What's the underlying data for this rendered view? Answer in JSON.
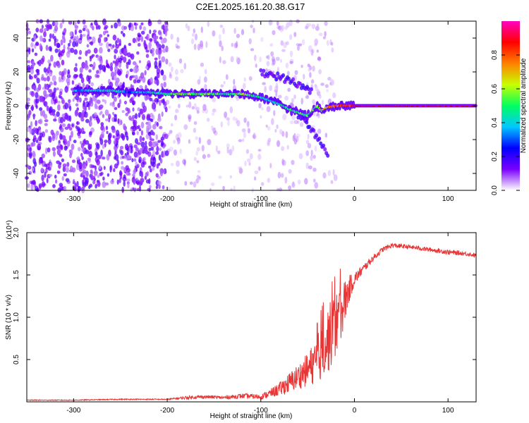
{
  "figure": {
    "title": "C2E1.2025.161.20.38.G17"
  },
  "chart_data": [
    {
      "type": "heatmap",
      "title": "C2E1.2025.161.20.38.G17",
      "xlabel": "Height of straight line (km)",
      "ylabel": "Frequency (Hz)",
      "xlim": [
        -350,
        130
      ],
      "ylim": [
        -50,
        50
      ],
      "xticks": [
        -300,
        -200,
        -100,
        0,
        100
      ],
      "yticks": [
        -40,
        -20,
        0,
        20,
        40
      ],
      "colorbar": {
        "label": "Normalized spectral amplitude",
        "range": [
          0,
          1
        ],
        "ticks": [
          0.0,
          0.2,
          0.4,
          0.6,
          0.8
        ],
        "tick_labels": [
          "0.0",
          "0.2",
          "0.4",
          "0.6",
          "0.8"
        ],
        "colormap": [
          "#ffffff",
          "#7a00ff",
          "#0000ff",
          "#00c8ff",
          "#00ff60",
          "#c8ff00",
          "#ff8000",
          "#ff0000",
          "#ff00c0"
        ]
      },
      "trace": {
        "x": [
          -300,
          -280,
          -260,
          -240,
          -220,
          -200,
          -180,
          -160,
          -140,
          -120,
          -100,
          -90,
          -80,
          -70,
          -60,
          -50,
          -40,
          -35,
          -30,
          -20,
          -10,
          0,
          50,
          100,
          130
        ],
        "freq": [
          9,
          9,
          9,
          8,
          8,
          7,
          7,
          7,
          7,
          7,
          5,
          3,
          1,
          -2,
          -4,
          -6,
          0,
          -3,
          -1,
          0,
          0,
          0,
          0,
          0,
          0
        ],
        "amplitude": [
          0.35,
          0.4,
          0.45,
          0.3,
          0.4,
          0.5,
          0.55,
          0.55,
          0.5,
          0.6,
          0.4,
          0.4,
          0.45,
          0.5,
          0.5,
          0.5,
          0.55,
          0.6,
          0.7,
          0.8,
          0.85,
          0.9,
          0.9,
          0.9,
          0.9
        ]
      },
      "branches": [
        {
          "x": [
            -100,
            -80,
            -60,
            -45
          ],
          "freq": [
            20,
            17,
            13,
            8
          ]
        },
        {
          "x": [
            -60,
            -45,
            -35,
            -28
          ],
          "freq": [
            -5,
            -15,
            -22,
            -28
          ]
        }
      ]
    },
    {
      "type": "line",
      "xlabel": "Height of straight line (km)",
      "ylabel": "SNR (10 * v/v)",
      "multiplier_label": "(x10⁴)",
      "xlim": [
        -350,
        130
      ],
      "ylim": [
        0,
        2.0
      ],
      "xticks": [
        -300,
        -200,
        -100,
        0,
        100
      ],
      "yticks": [
        0.5,
        1.0,
        1.5,
        2.0
      ],
      "ytick_labels": [
        "0.5",
        "1.0",
        "1.5",
        "2.0"
      ],
      "color": "#e83535",
      "series": [
        {
          "x": [
            -350,
            -300,
            -250,
            -200,
            -180,
            -160,
            -140,
            -120,
            -100,
            -90,
            -80,
            -70,
            -60,
            -50,
            -40,
            -30,
            -20,
            -15,
            -10,
            -5,
            0,
            10,
            20,
            30,
            40,
            60,
            80,
            100,
            120,
            130
          ],
          "values": [
            0.02,
            0.02,
            0.03,
            0.03,
            0.05,
            0.06,
            0.05,
            0.07,
            0.06,
            0.1,
            0.15,
            0.22,
            0.3,
            0.38,
            0.5,
            0.7,
            0.9,
            1.05,
            1.2,
            1.35,
            1.45,
            1.58,
            1.7,
            1.8,
            1.85,
            1.83,
            1.8,
            1.77,
            1.75,
            1.73
          ],
          "noise": [
            0.005,
            0.005,
            0.006,
            0.006,
            0.02,
            0.02,
            0.02,
            0.03,
            0.03,
            0.05,
            0.08,
            0.12,
            0.15,
            0.2,
            0.28,
            0.4,
            0.4,
            0.35,
            0.25,
            0.15,
            0.08,
            0.05,
            0.04,
            0.03,
            0.03,
            0.025,
            0.025,
            0.03,
            0.025,
            0.025
          ]
        }
      ]
    }
  ]
}
